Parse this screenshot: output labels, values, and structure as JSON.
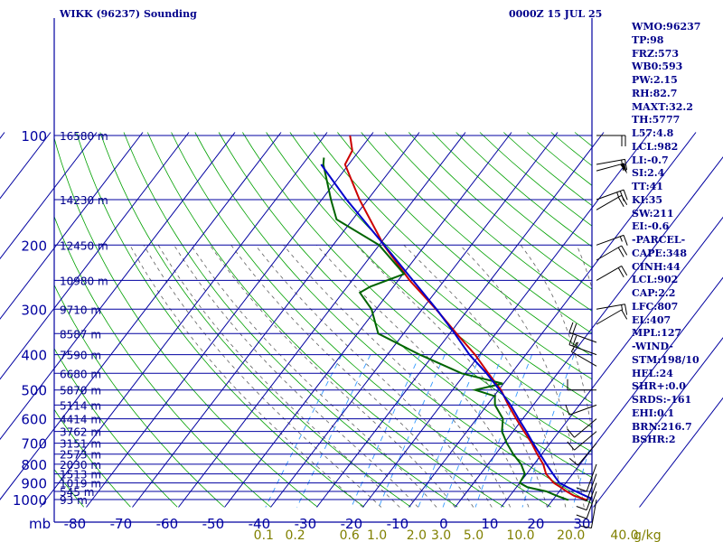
{
  "header": {
    "station": "WIKK (96237) Sounding",
    "datetime": "0000Z 15 JUL 25"
  },
  "colors": {
    "grid": "#0000a0",
    "isotherm": "#0000a0",
    "dry_adiabat": "#00a000",
    "moist_adiabat": "#606060",
    "mixing_ratio": "#3399ff",
    "temperature": "#cc0000",
    "dewpoint": "#006400",
    "parcel": "#0000cc",
    "text": "#00008b",
    "mixing_label": "#808000",
    "wind_barb": "#000000"
  },
  "indices": [
    "WMO:96237",
    "TP:98",
    "FRZ:573",
    "WB0:593",
    "PW:2.15",
    "RH:82.7",
    "MAXT:32.2",
    "TH:5777",
    "L57:4.8",
    "LCL:982",
    "LI:-0.7",
    "SI:2.4",
    "TT:41",
    "KI:35",
    "SW:211",
    "EI:-0.6",
    "-PARCEL-",
    "CAPE:348",
    "CINH:44",
    "LCL:902",
    "CAP:2.2",
    "LFC:807",
    "EL:407",
    "MPL:127",
    "-WIND-",
    "STM:198/10",
    "HEL:24",
    "SHR+:0.0",
    "SRDS:-161",
    "EHI:0.1",
    "BRN:216.7",
    "BSHR:2"
  ],
  "chart_data": {
    "type": "line",
    "subtype": "skew-T log-P sounding",
    "title": "WIKK (96237) Sounding",
    "datetime": "0000Z 15 JUL 25",
    "xlabel": "",
    "ylabel": "mb",
    "x_axis_unit_label": "mb",
    "pressure_scale": "log",
    "pressure_range": [
      100,
      1050
    ],
    "temperature_range": [
      -80,
      40
    ],
    "pressure_ticks": [
      100,
      200,
      300,
      400,
      500,
      600,
      700,
      800,
      900,
      1000
    ],
    "pressure_grid": [
      100,
      150,
      200,
      250,
      300,
      350,
      400,
      450,
      500,
      550,
      600,
      650,
      700,
      750,
      800,
      850,
      900,
      950,
      1000
    ],
    "temperature_ticks": [
      -80,
      -70,
      -60,
      -50,
      -40,
      -30,
      -20,
      -10,
      0,
      10,
      20,
      30
    ],
    "height_labels": [
      {
        "p": 100,
        "label": "16580 m"
      },
      {
        "p": 150,
        "label": "14230 m"
      },
      {
        "p": 200,
        "label": "12450 m"
      },
      {
        "p": 250,
        "label": "10980 m"
      },
      {
        "p": 300,
        "label": "9710 m"
      },
      {
        "p": 350,
        "label": "8587 m"
      },
      {
        "p": 400,
        "label": "7590 m"
      },
      {
        "p": 450,
        "label": "6680 m"
      },
      {
        "p": 500,
        "label": "5870 m"
      },
      {
        "p": 550,
        "label": "5114 m"
      },
      {
        "p": 600,
        "label": "4414 m"
      },
      {
        "p": 650,
        "label": "3762 m"
      },
      {
        "p": 700,
        "label": "3151 m"
      },
      {
        "p": 750,
        "label": "2573 m"
      },
      {
        "p": 800,
        "label": "2030 m"
      },
      {
        "p": 850,
        "label": "1513 m"
      },
      {
        "p": 900,
        "label": "1019 m"
      },
      {
        "p": 950,
        "label": "545 m"
      },
      {
        "p": 1000,
        "label": "93 m"
      }
    ],
    "mixing_ratio_labels": [
      "0.1",
      "0.2",
      "0.6",
      "1.0",
      "2.0",
      "3.0",
      "5.0",
      "10.0",
      "20.0",
      "40.0"
    ],
    "mixing_ratio_unit": "g/kg",
    "series": [
      {
        "name": "",
        "role": "temperature",
        "points": [
          [
            1002,
            27.4
          ],
          [
            1000,
            27.0
          ],
          [
            975,
            23.8
          ],
          [
            950,
            21.6
          ],
          [
            925,
            19.6
          ],
          [
            900,
            17.4
          ],
          [
            850,
            14.2
          ],
          [
            800,
            12.0
          ],
          [
            750,
            9.0
          ],
          [
            700,
            6.0
          ],
          [
            650,
            2.4
          ],
          [
            600,
            -1.4
          ],
          [
            550,
            -5.4
          ],
          [
            500,
            -9.5
          ],
          [
            450,
            -15.0
          ],
          [
            400,
            -21.0
          ],
          [
            350,
            -28.5
          ],
          [
            300,
            -37.0
          ],
          [
            250,
            -47.5
          ],
          [
            200,
            -59.0
          ],
          [
            150,
            -71.8
          ],
          [
            120,
            -80.8
          ],
          [
            110,
            -81.5
          ],
          [
            100,
            -84.5
          ]
        ]
      },
      {
        "name": "",
        "role": "dewpoint",
        "points": [
          [
            1002,
            23.4
          ],
          [
            1000,
            23.0
          ],
          [
            975,
            20.0
          ],
          [
            950,
            17.2
          ],
          [
            925,
            12.4
          ],
          [
            900,
            10.0
          ],
          [
            850,
            9.6
          ],
          [
            800,
            7.2
          ],
          [
            750,
            3.8
          ],
          [
            700,
            0.6
          ],
          [
            650,
            -2.4
          ],
          [
            600,
            -4.3
          ],
          [
            550,
            -8.3
          ],
          [
            520,
            -9.8
          ],
          [
            500,
            -15.1
          ],
          [
            480,
            -10.2
          ],
          [
            450,
            -20.8
          ],
          [
            400,
            -33.0
          ],
          [
            350,
            -45.5
          ],
          [
            300,
            -51.0
          ],
          [
            270,
            -56.3
          ],
          [
            260,
            -55.0
          ],
          [
            240,
            -49.8
          ],
          [
            200,
            -60.0
          ],
          [
            170,
            -73.5
          ],
          [
            150,
            -78.0
          ],
          [
            120,
            -85.5
          ],
          [
            115,
            -86.5
          ]
        ]
      },
      {
        "name": "",
        "role": "parcel",
        "points": [
          [
            1000,
            28.8
          ],
          [
            975,
            26.2
          ],
          [
            950,
            23.6
          ],
          [
            925,
            21.1
          ],
          [
            900,
            18.6
          ],
          [
            850,
            15.7
          ],
          [
            800,
            12.7
          ],
          [
            750,
            9.6
          ],
          [
            700,
            6.3
          ],
          [
            650,
            2.9
          ],
          [
            600,
            -0.9
          ],
          [
            550,
            -4.9
          ],
          [
            500,
            -9.8
          ],
          [
            450,
            -15.4
          ],
          [
            400,
            -22.2
          ],
          [
            350,
            -28.9
          ],
          [
            300,
            -36.9
          ],
          [
            250,
            -46.8
          ],
          [
            200,
            -58.9
          ],
          [
            150,
            -74.6
          ],
          [
            120,
            -86.0
          ]
        ]
      }
    ],
    "wind_barbs": [
      {
        "p": 100,
        "dir": 90,
        "spd": 20
      },
      {
        "p": 120,
        "dir": 80,
        "spd": 20
      },
      {
        "p": 125,
        "dir": 75,
        "spd": 50
      },
      {
        "p": 150,
        "dir": 70,
        "spd": 25
      },
      {
        "p": 160,
        "dir": 60,
        "spd": 20
      },
      {
        "p": 200,
        "dir": 70,
        "spd": 15
      },
      {
        "p": 220,
        "dir": 60,
        "spd": 20
      },
      {
        "p": 250,
        "dir": 60,
        "spd": 20
      },
      {
        "p": 300,
        "dir": 80,
        "spd": 15
      },
      {
        "p": 330,
        "dir": 60,
        "spd": 10
      },
      {
        "p": 370,
        "dir": 290,
        "spd": 20
      },
      {
        "p": 400,
        "dir": 290,
        "spd": 25
      },
      {
        "p": 430,
        "dir": 300,
        "spd": 10
      },
      {
        "p": 500,
        "dir": 270,
        "spd": 10
      },
      {
        "p": 550,
        "dir": 250,
        "spd": 10
      },
      {
        "p": 600,
        "dir": 230,
        "spd": 10
      },
      {
        "p": 650,
        "dir": 230,
        "spd": 10
      },
      {
        "p": 700,
        "dir": 220,
        "spd": 10
      },
      {
        "p": 800,
        "dir": 200,
        "spd": 10
      },
      {
        "p": 850,
        "dir": 200,
        "spd": 5
      },
      {
        "p": 900,
        "dir": 200,
        "spd": 10
      },
      {
        "p": 950,
        "dir": 200,
        "spd": 10
      },
      {
        "p": 1000,
        "dir": 190,
        "spd": 10
      }
    ],
    "grid": true,
    "legend": "none"
  }
}
